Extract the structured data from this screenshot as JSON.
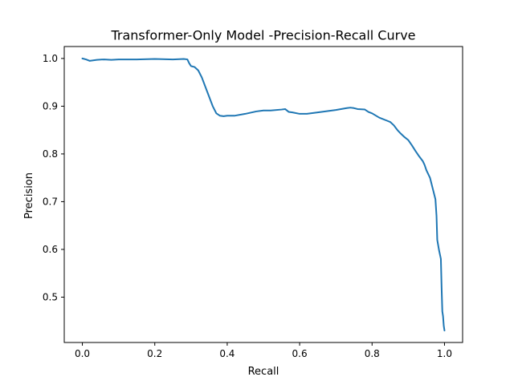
{
  "chart_data": {
    "type": "line",
    "title": "Transformer-Only Model -Precision-Recall Curve",
    "xlabel": "Recall",
    "ylabel": "Precision",
    "xlim": [
      -0.05,
      1.05
    ],
    "ylim": [
      0.405,
      1.025
    ],
    "x_ticks": [
      0.0,
      0.2,
      0.4,
      0.6,
      0.8,
      1.0
    ],
    "x_tick_labels": [
      "0.0",
      "0.2",
      "0.4",
      "0.6",
      "0.8",
      "1.0"
    ],
    "y_ticks": [
      0.5,
      0.6,
      0.7,
      0.8,
      0.9,
      1.0
    ],
    "y_tick_labels": [
      "0.5",
      "0.6",
      "0.7",
      "0.8",
      "0.9",
      "1.0"
    ],
    "grid": false,
    "legend": "none",
    "line_color": "#1f77b4",
    "series": [
      {
        "x": [
          0.0,
          0.01,
          0.02,
          0.04,
          0.06,
          0.08,
          0.1,
          0.15,
          0.2,
          0.25,
          0.28,
          0.29,
          0.295,
          0.3,
          0.31,
          0.32,
          0.33,
          0.34,
          0.35,
          0.36,
          0.37,
          0.38,
          0.39,
          0.4,
          0.42,
          0.45,
          0.48,
          0.5,
          0.52,
          0.55,
          0.56,
          0.57,
          0.58,
          0.6,
          0.62,
          0.65,
          0.7,
          0.73,
          0.74,
          0.75,
          0.76,
          0.78,
          0.79,
          0.8,
          0.82,
          0.84,
          0.85,
          0.86,
          0.87,
          0.88,
          0.89,
          0.9,
          0.91,
          0.92,
          0.93,
          0.94,
          0.945,
          0.95,
          0.96,
          0.965,
          0.97,
          0.975,
          0.978,
          0.98,
          0.985,
          0.99,
          0.992,
          0.994,
          0.996,
          0.998,
          1.0
        ],
        "y": [
          1.0,
          0.998,
          0.995,
          0.997,
          0.998,
          0.997,
          0.998,
          0.998,
          0.999,
          0.998,
          0.999,
          0.998,
          0.99,
          0.984,
          0.982,
          0.975,
          0.96,
          0.94,
          0.92,
          0.9,
          0.885,
          0.88,
          0.879,
          0.88,
          0.88,
          0.884,
          0.889,
          0.891,
          0.891,
          0.893,
          0.894,
          0.888,
          0.887,
          0.884,
          0.884,
          0.887,
          0.892,
          0.896,
          0.897,
          0.896,
          0.894,
          0.893,
          0.888,
          0.885,
          0.876,
          0.87,
          0.867,
          0.86,
          0.85,
          0.842,
          0.835,
          0.829,
          0.818,
          0.806,
          0.795,
          0.785,
          0.777,
          0.766,
          0.75,
          0.735,
          0.72,
          0.705,
          0.67,
          0.62,
          0.598,
          0.58,
          0.52,
          0.47,
          0.46,
          0.44,
          0.43
        ]
      }
    ]
  }
}
